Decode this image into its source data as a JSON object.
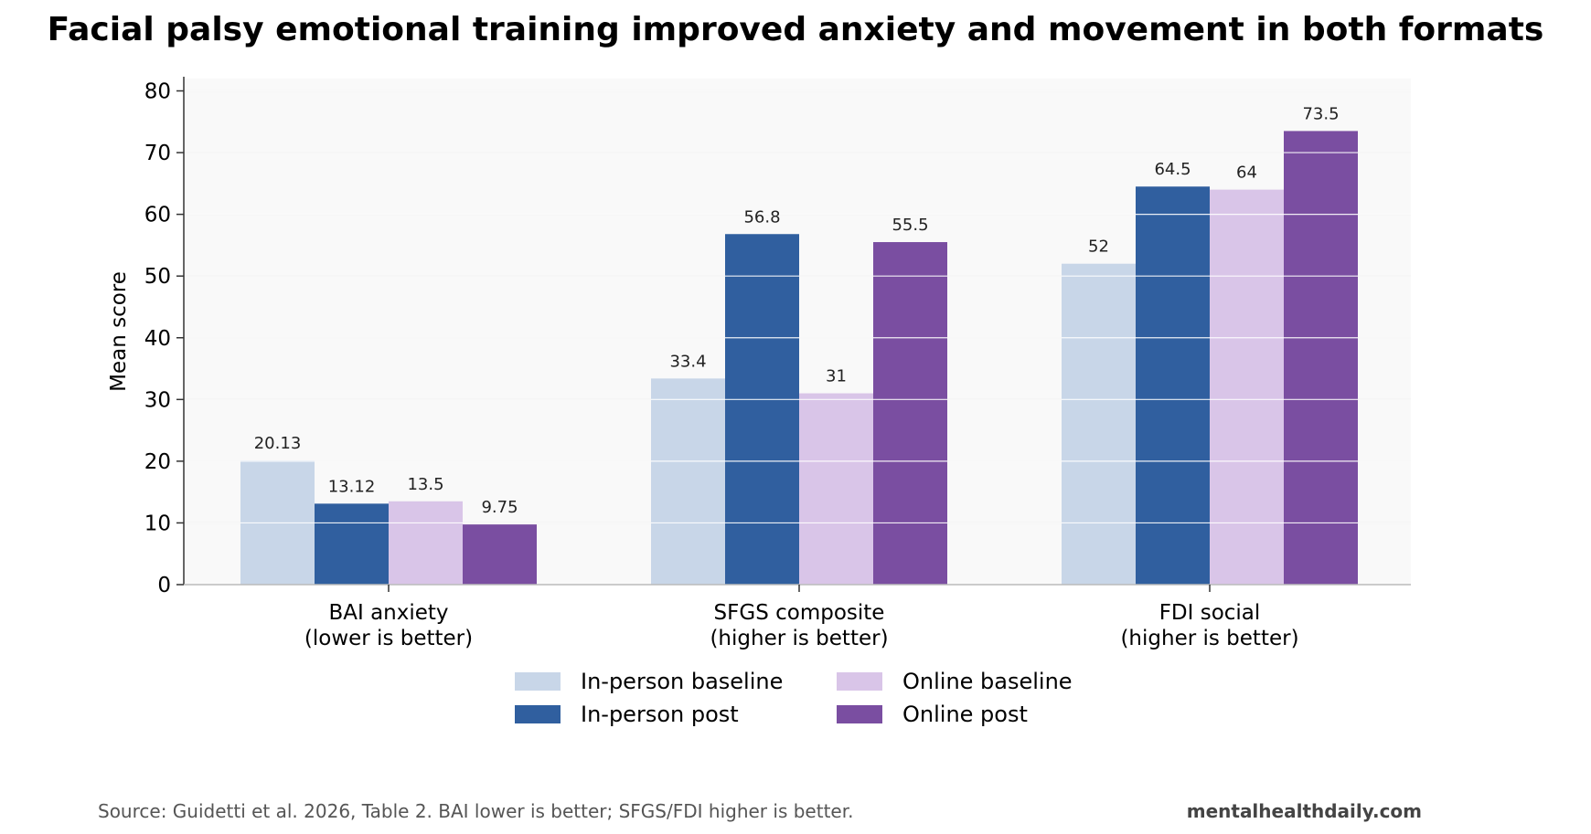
{
  "title": "Facial palsy emotional training improved anxiety and movement in both formats",
  "source": "Source: Guidetti et al. 2026, Table 2. BAI lower is better; SFGS/FDI higher is better.",
  "brand": "mentalhealthdaily.com",
  "chart_data": {
    "type": "bar",
    "categories": [
      "BAI anxiety\n(lower is better)",
      "SFGS composite\n(higher is better)",
      "FDI social\n(higher is better)"
    ],
    "series": [
      {
        "name": "In-person baseline",
        "color": "#c8d6e8",
        "values": [
          20.13,
          33.4,
          52
        ]
      },
      {
        "name": "In-person post",
        "color": "#305f9f",
        "values": [
          13.12,
          56.8,
          64.5
        ]
      },
      {
        "name": "Online baseline",
        "color": "#d9c5e8",
        "values": [
          13.5,
          31,
          64
        ]
      },
      {
        "name": "Online post",
        "color": "#7a4ea1",
        "values": [
          9.75,
          55.5,
          73.5
        ]
      }
    ],
    "value_labels": [
      [
        "20.13",
        "33.4",
        "52"
      ],
      [
        "13.12",
        "56.8",
        "64.5"
      ],
      [
        "13.5",
        "31",
        "64"
      ],
      [
        "9.75",
        "55.5",
        "73.5"
      ]
    ],
    "xlabel": "",
    "ylabel": "Mean score",
    "ylim": [
      0,
      82
    ],
    "yticks": [
      0,
      10,
      20,
      30,
      40,
      50,
      60,
      70,
      80
    ],
    "grid": true,
    "legend_position": "bottom-center"
  }
}
